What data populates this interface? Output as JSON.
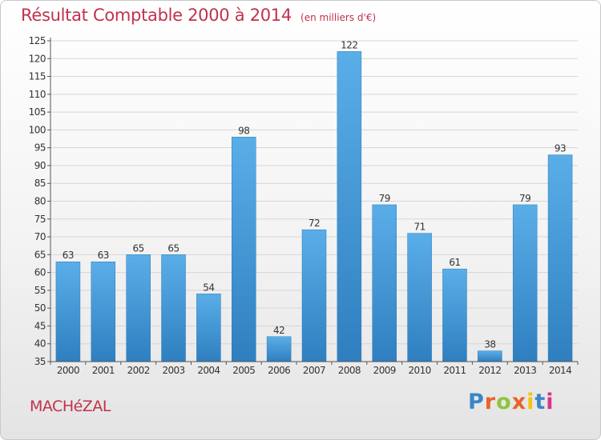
{
  "header": {
    "title": "Résultat Comptable 2000 à 2014",
    "unit": "(en milliers d'€)"
  },
  "footer": {
    "commune": "MACHéZAL",
    "logo_letters": [
      "P",
      "r",
      "o",
      "x",
      "i",
      "t",
      "i"
    ]
  },
  "colors": {
    "title": "#c0324b",
    "bar_top": "#5aaee8",
    "bar_bottom": "#2f7fc0",
    "grid": "#d6d6d6",
    "axis": "#555555",
    "text": "#333333",
    "logo": [
      "#3a86c8",
      "#e8632b",
      "#8cc63f",
      "#e8632b",
      "#f2c40f",
      "#3a86c8",
      "#d9338a"
    ]
  },
  "chart_data": {
    "type": "bar",
    "title": "Résultat Comptable 2000 à 2014",
    "subtitle": "(en milliers d'€)",
    "xlabel": "",
    "ylabel": "",
    "categories": [
      "2000",
      "2001",
      "2002",
      "2003",
      "2004",
      "2005",
      "2006",
      "2007",
      "2008",
      "2009",
      "2010",
      "2011",
      "2012",
      "2013",
      "2014"
    ],
    "values": [
      63,
      63,
      65,
      65,
      54,
      98,
      42,
      72,
      122,
      79,
      71,
      61,
      38,
      79,
      93
    ],
    "ylim": [
      35,
      125
    ],
    "yticks": [
      35,
      40,
      45,
      50,
      55,
      60,
      65,
      70,
      75,
      80,
      85,
      90,
      95,
      100,
      105,
      110,
      115,
      120,
      125
    ],
    "grid": true,
    "legend": "none"
  }
}
